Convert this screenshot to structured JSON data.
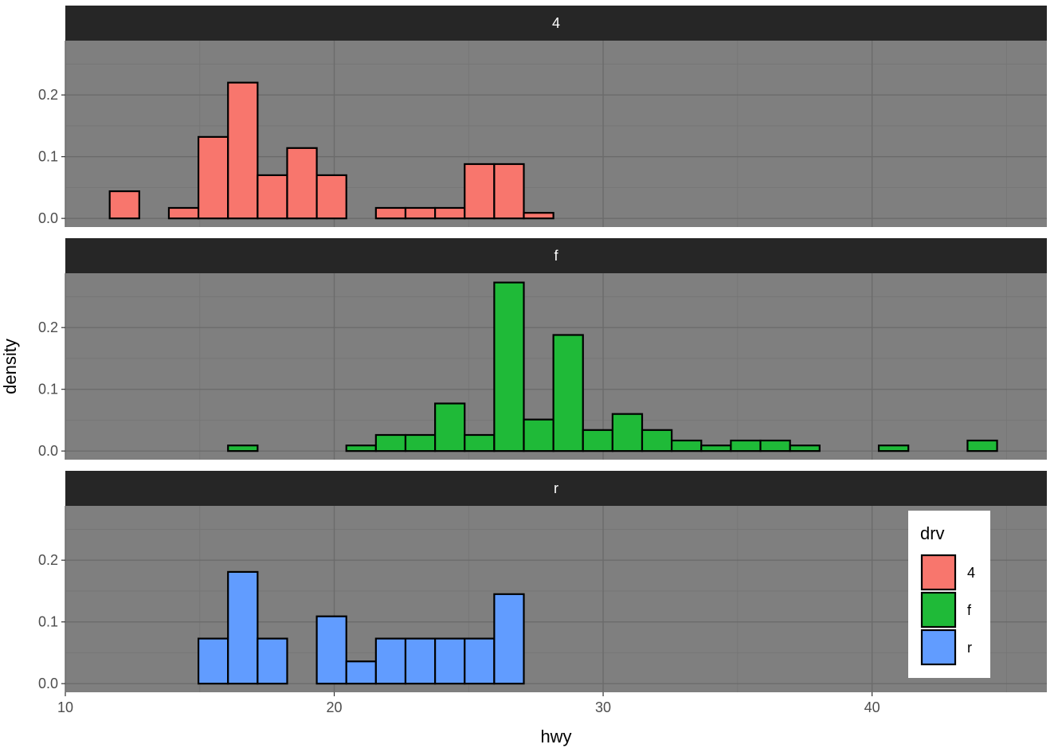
{
  "chart_data": {
    "type": "bar",
    "subtype": "faceted-histogram",
    "title": "",
    "xlabel": "hwy",
    "ylabel": "density",
    "xlim": [
      10,
      46.5
    ],
    "ylim": [
      -0.014,
      0.288
    ],
    "x_ticks": [
      10,
      20,
      30,
      40
    ],
    "x_tick_labels": [
      "10",
      "20",
      "30",
      "40"
    ],
    "y_ticks": [
      0.0,
      0.1,
      0.2
    ],
    "y_tick_labels": [
      "0.0",
      "0.1",
      "0.2"
    ],
    "grid": true,
    "theme": "dark",
    "bin_width": 1.1,
    "x_range": [
      11.65,
      44.65
    ],
    "facets": [
      {
        "label": "4",
        "color": "#F8766D",
        "bins": [
          {
            "x0": 11.65,
            "x1": 12.75,
            "density": 0.044
          },
          {
            "x0": 12.75,
            "x1": 13.85,
            "density": 0.0
          },
          {
            "x0": 13.85,
            "x1": 14.95,
            "density": 0.017
          },
          {
            "x0": 14.95,
            "x1": 16.05,
            "density": 0.132
          },
          {
            "x0": 16.05,
            "x1": 17.15,
            "density": 0.22
          },
          {
            "x0": 17.15,
            "x1": 18.25,
            "density": 0.07
          },
          {
            "x0": 18.25,
            "x1": 19.35,
            "density": 0.114
          },
          {
            "x0": 19.35,
            "x1": 20.45,
            "density": 0.07
          },
          {
            "x0": 20.45,
            "x1": 21.55,
            "density": 0.0
          },
          {
            "x0": 21.55,
            "x1": 22.65,
            "density": 0.017
          },
          {
            "x0": 22.65,
            "x1": 23.75,
            "density": 0.017
          },
          {
            "x0": 23.75,
            "x1": 24.85,
            "density": 0.017
          },
          {
            "x0": 24.85,
            "x1": 25.95,
            "density": 0.088
          },
          {
            "x0": 25.95,
            "x1": 27.05,
            "density": 0.088
          },
          {
            "x0": 27.05,
            "x1": 28.15,
            "density": 0.009
          },
          {
            "x0": 28.15,
            "x1": 44.65,
            "density": 0.0
          }
        ]
      },
      {
        "label": "f",
        "color": "#1FBA38",
        "bins": [
          {
            "x0": 11.65,
            "x1": 16.05,
            "density": 0.0
          },
          {
            "x0": 16.05,
            "x1": 17.15,
            "density": 0.009
          },
          {
            "x0": 17.15,
            "x1": 20.45,
            "density": 0.0
          },
          {
            "x0": 20.45,
            "x1": 21.55,
            "density": 0.009
          },
          {
            "x0": 21.55,
            "x1": 22.65,
            "density": 0.026
          },
          {
            "x0": 22.65,
            "x1": 23.75,
            "density": 0.026
          },
          {
            "x0": 23.75,
            "x1": 24.85,
            "density": 0.077
          },
          {
            "x0": 24.85,
            "x1": 25.95,
            "density": 0.026
          },
          {
            "x0": 25.95,
            "x1": 27.05,
            "density": 0.273
          },
          {
            "x0": 27.05,
            "x1": 28.15,
            "density": 0.051
          },
          {
            "x0": 28.15,
            "x1": 29.25,
            "density": 0.188
          },
          {
            "x0": 29.25,
            "x1": 30.35,
            "density": 0.034
          },
          {
            "x0": 30.35,
            "x1": 31.45,
            "density": 0.06
          },
          {
            "x0": 31.45,
            "x1": 32.55,
            "density": 0.034
          },
          {
            "x0": 32.55,
            "x1": 33.65,
            "density": 0.017
          },
          {
            "x0": 33.65,
            "x1": 34.75,
            "density": 0.009
          },
          {
            "x0": 34.75,
            "x1": 35.85,
            "density": 0.017
          },
          {
            "x0": 35.85,
            "x1": 36.95,
            "density": 0.017
          },
          {
            "x0": 36.95,
            "x1": 38.05,
            "density": 0.009
          },
          {
            "x0": 38.05,
            "x1": 40.25,
            "density": 0.0
          },
          {
            "x0": 40.25,
            "x1": 41.35,
            "density": 0.009
          },
          {
            "x0": 41.35,
            "x1": 43.55,
            "density": 0.0
          },
          {
            "x0": 43.55,
            "x1": 44.65,
            "density": 0.017
          }
        ]
      },
      {
        "label": "r",
        "color": "#619CFF",
        "bins": [
          {
            "x0": 11.65,
            "x1": 14.95,
            "density": 0.0
          },
          {
            "x0": 14.95,
            "x1": 16.05,
            "density": 0.073
          },
          {
            "x0": 16.05,
            "x1": 17.15,
            "density": 0.181
          },
          {
            "x0": 17.15,
            "x1": 18.25,
            "density": 0.073
          },
          {
            "x0": 18.25,
            "x1": 19.35,
            "density": 0.0
          },
          {
            "x0": 19.35,
            "x1": 20.45,
            "density": 0.109
          },
          {
            "x0": 20.45,
            "x1": 21.55,
            "density": 0.036
          },
          {
            "x0": 21.55,
            "x1": 22.65,
            "density": 0.073
          },
          {
            "x0": 22.65,
            "x1": 23.75,
            "density": 0.073
          },
          {
            "x0": 23.75,
            "x1": 24.85,
            "density": 0.073
          },
          {
            "x0": 24.85,
            "x1": 25.95,
            "density": 0.073
          },
          {
            "x0": 25.95,
            "x1": 27.05,
            "density": 0.145
          },
          {
            "x0": 27.05,
            "x1": 44.65,
            "density": 0.0
          }
        ]
      }
    ],
    "legend": {
      "title": "drv",
      "position": "inside-bottom-right",
      "entries": [
        {
          "label": "4",
          "color": "#F8766D"
        },
        {
          "label": "f",
          "color": "#1FBA38"
        },
        {
          "label": "r",
          "color": "#619CFF"
        }
      ]
    },
    "colors": {
      "panel_background": "#7F7F7F",
      "grid_major": "#6B6B6B",
      "grid_minor": "#757575",
      "strip_background": "#262626",
      "bar_outline": "#000000"
    }
  }
}
